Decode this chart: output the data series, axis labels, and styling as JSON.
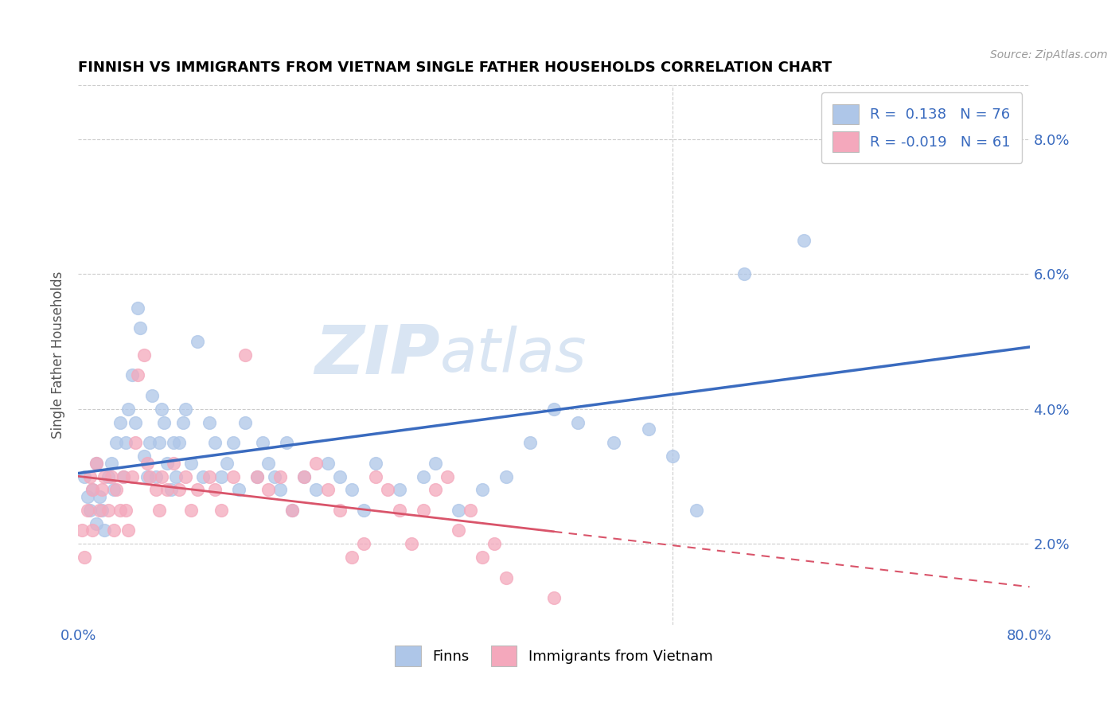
{
  "title": "FINNISH VS IMMIGRANTS FROM VIETNAM SINGLE FATHER HOUSEHOLDS CORRELATION CHART",
  "source": "Source: ZipAtlas.com",
  "ylabel": "Single Father Households",
  "legend_label1": "Finns",
  "legend_label2": "Immigrants from Vietnam",
  "R1": 0.138,
  "N1": 76,
  "R2": -0.019,
  "N2": 61,
  "color1": "#aec6e8",
  "color2": "#f4a8bc",
  "line_color1": "#3a6bbf",
  "line_color2": "#d9546a",
  "watermark_color": "#d0dff0",
  "xlim": [
    0.0,
    0.8
  ],
  "ylim": [
    0.008,
    0.088
  ],
  "yticks": [
    0.02,
    0.04,
    0.06,
    0.08
  ],
  "ytick_labels": [
    "2.0%",
    "4.0%",
    "6.0%",
    "8.0%"
  ],
  "finns_x": [
    0.005,
    0.008,
    0.01,
    0.012,
    0.015,
    0.015,
    0.018,
    0.02,
    0.022,
    0.025,
    0.028,
    0.03,
    0.032,
    0.035,
    0.038,
    0.04,
    0.042,
    0.045,
    0.048,
    0.05,
    0.052,
    0.055,
    0.058,
    0.06,
    0.062,
    0.065,
    0.068,
    0.07,
    0.072,
    0.075,
    0.078,
    0.08,
    0.082,
    0.085,
    0.088,
    0.09,
    0.095,
    0.1,
    0.105,
    0.11,
    0.115,
    0.12,
    0.125,
    0.13,
    0.135,
    0.14,
    0.15,
    0.155,
    0.16,
    0.165,
    0.17,
    0.175,
    0.18,
    0.19,
    0.2,
    0.21,
    0.22,
    0.23,
    0.24,
    0.25,
    0.27,
    0.29,
    0.3,
    0.32,
    0.34,
    0.36,
    0.38,
    0.4,
    0.42,
    0.45,
    0.48,
    0.5,
    0.52,
    0.56,
    0.61,
    0.7
  ],
  "finns_y": [
    0.03,
    0.027,
    0.025,
    0.028,
    0.032,
    0.023,
    0.027,
    0.025,
    0.022,
    0.03,
    0.032,
    0.028,
    0.035,
    0.038,
    0.03,
    0.035,
    0.04,
    0.045,
    0.038,
    0.055,
    0.052,
    0.033,
    0.03,
    0.035,
    0.042,
    0.03,
    0.035,
    0.04,
    0.038,
    0.032,
    0.028,
    0.035,
    0.03,
    0.035,
    0.038,
    0.04,
    0.032,
    0.05,
    0.03,
    0.038,
    0.035,
    0.03,
    0.032,
    0.035,
    0.028,
    0.038,
    0.03,
    0.035,
    0.032,
    0.03,
    0.028,
    0.035,
    0.025,
    0.03,
    0.028,
    0.032,
    0.03,
    0.028,
    0.025,
    0.032,
    0.028,
    0.03,
    0.032,
    0.025,
    0.028,
    0.03,
    0.035,
    0.04,
    0.038,
    0.035,
    0.037,
    0.033,
    0.025,
    0.06,
    0.065,
    0.08
  ],
  "viet_x": [
    0.003,
    0.005,
    0.008,
    0.01,
    0.012,
    0.012,
    0.015,
    0.018,
    0.02,
    0.022,
    0.025,
    0.028,
    0.03,
    0.032,
    0.035,
    0.038,
    0.04,
    0.042,
    0.045,
    0.048,
    0.05,
    0.055,
    0.058,
    0.06,
    0.065,
    0.068,
    0.07,
    0.075,
    0.08,
    0.085,
    0.09,
    0.095,
    0.1,
    0.11,
    0.115,
    0.12,
    0.13,
    0.14,
    0.15,
    0.16,
    0.17,
    0.18,
    0.19,
    0.2,
    0.21,
    0.22,
    0.23,
    0.24,
    0.25,
    0.26,
    0.27,
    0.28,
    0.29,
    0.3,
    0.31,
    0.32,
    0.33,
    0.34,
    0.35,
    0.36,
    0.4
  ],
  "viet_y": [
    0.022,
    0.018,
    0.025,
    0.03,
    0.028,
    0.022,
    0.032,
    0.025,
    0.028,
    0.03,
    0.025,
    0.03,
    0.022,
    0.028,
    0.025,
    0.03,
    0.025,
    0.022,
    0.03,
    0.035,
    0.045,
    0.048,
    0.032,
    0.03,
    0.028,
    0.025,
    0.03,
    0.028,
    0.032,
    0.028,
    0.03,
    0.025,
    0.028,
    0.03,
    0.028,
    0.025,
    0.03,
    0.048,
    0.03,
    0.028,
    0.03,
    0.025,
    0.03,
    0.032,
    0.028,
    0.025,
    0.018,
    0.02,
    0.03,
    0.028,
    0.025,
    0.02,
    0.025,
    0.028,
    0.03,
    0.022,
    0.025,
    0.018,
    0.02,
    0.015,
    0.012
  ]
}
